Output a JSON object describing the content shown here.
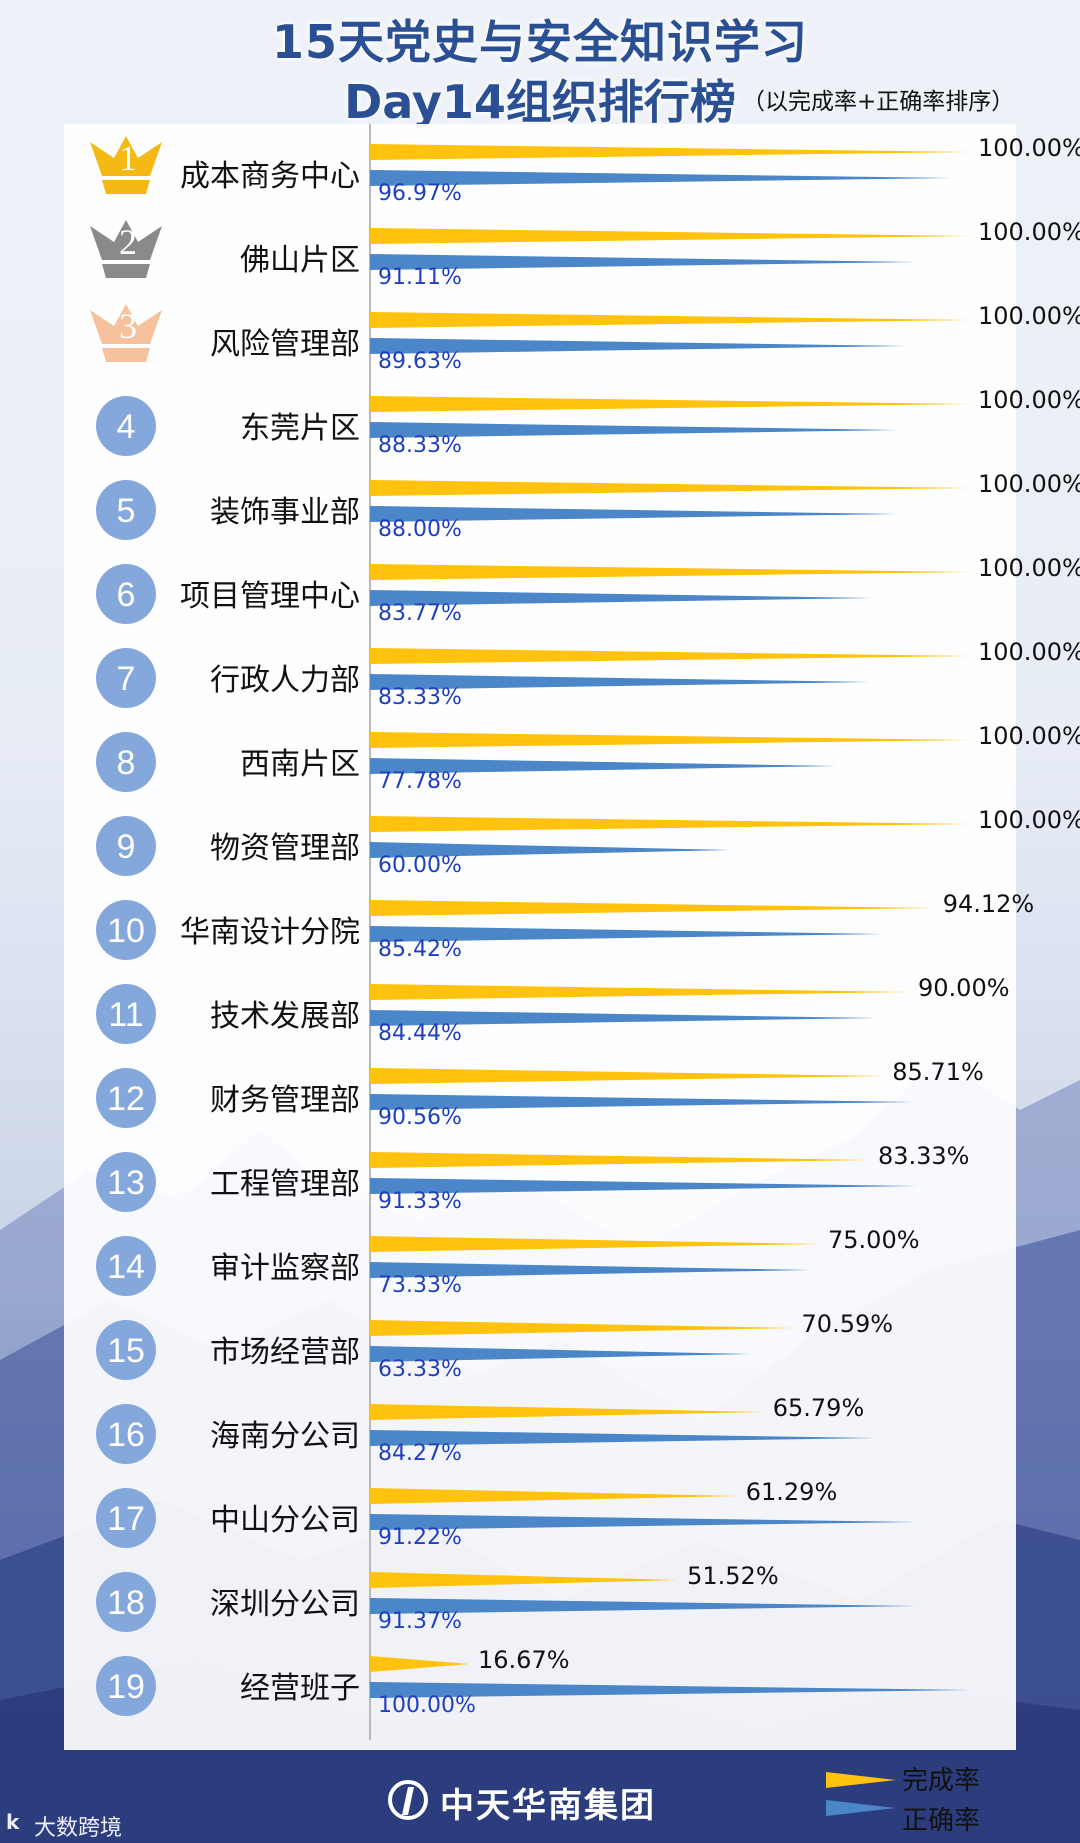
{
  "header": {
    "title_line1": "15天党史与安全知识学习",
    "title_line2": "Day14组织排行榜",
    "subtitle": "（以完成率+正确率排序）"
  },
  "colors": {
    "completion": "#ffc20e",
    "accuracy": "#4a86c8",
    "badge": "#84a7dc",
    "gold": "#f4b915",
    "silver": "#8a8a8a",
    "bronze": "#f6c29e",
    "accuracy_label": "#1f3fbf"
  },
  "chart_data": {
    "type": "bar",
    "orientation": "horizontal",
    "title": "",
    "xlabel": "",
    "ylabel": "",
    "xlim": [
      0,
      100
    ],
    "grid": false,
    "legend_position": "bottom-right",
    "categories": [
      "成本商务中心",
      "佛山片区",
      "风险管理部",
      "东莞片区",
      "装饰事业部",
      "项目管理中心",
      "行政人力部",
      "西南片区",
      "物资管理部",
      "华南设计分院",
      "技术发展部",
      "财务管理部",
      "工程管理部",
      "审计监察部",
      "市场经营部",
      "海南分公司",
      "中山分公司",
      "深圳分公司",
      "经营班子"
    ],
    "ranks": [
      "1",
      "2",
      "3",
      "4",
      "5",
      "6",
      "7",
      "8",
      "9",
      "10",
      "11",
      "12",
      "13",
      "14",
      "15",
      "16",
      "17",
      "18",
      "19"
    ],
    "series": [
      {
        "name": "完成率",
        "values": [
          100,
          100,
          100,
          100,
          100,
          100,
          100,
          100,
          100,
          94.12,
          90,
          85.71,
          83.33,
          75,
          70.59,
          65.79,
          61.29,
          51.52,
          16.67
        ],
        "labels": [
          "100.00%",
          "100.00%",
          "100.00%",
          "100.00%",
          "100.00%",
          "100.00%",
          "100.00%",
          "100.00%",
          "100.00%",
          "94.12%",
          "90.00%",
          "85.71%",
          "83.33%",
          "75.00%",
          "70.59%",
          "65.79%",
          "61.29%",
          "51.52%",
          "16.67%"
        ]
      },
      {
        "name": "正确率",
        "values": [
          96.97,
          91.11,
          89.63,
          88.33,
          88,
          83.77,
          83.33,
          77.78,
          60,
          85.42,
          84.44,
          90.56,
          91.33,
          73.33,
          63.33,
          84.27,
          91.22,
          91.37,
          100
        ],
        "labels": [
          "96.97%",
          "91.11%",
          "89.63%",
          "88.33%",
          "88.00%",
          "83.77%",
          "83.33%",
          "77.78%",
          "60.00%",
          "85.42%",
          "84.44%",
          "90.56%",
          "91.33%",
          "73.33%",
          "63.33%",
          "84.27%",
          "91.22%",
          "91.37%",
          "100.00%"
        ]
      }
    ]
  },
  "footer": {
    "brand": "中天华南集团",
    "watermark": "大数跨境",
    "watermark_mark": "k"
  },
  "legend": {
    "completion_label": "完成率",
    "accuracy_label": "正确率"
  }
}
